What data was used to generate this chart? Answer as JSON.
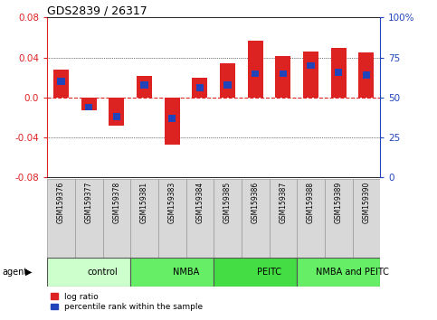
{
  "title": "GDS2839 / 26317",
  "samples": [
    "GSM159376",
    "GSM159377",
    "GSM159378",
    "GSM159381",
    "GSM159383",
    "GSM159384",
    "GSM159385",
    "GSM159386",
    "GSM159387",
    "GSM159388",
    "GSM159389",
    "GSM159390"
  ],
  "log_ratio": [
    0.028,
    -0.013,
    -0.028,
    0.022,
    -0.047,
    0.02,
    0.034,
    0.057,
    0.042,
    0.046,
    0.05,
    0.045
  ],
  "percentile": [
    0.6,
    0.44,
    0.38,
    0.58,
    0.37,
    0.56,
    0.58,
    0.65,
    0.65,
    0.7,
    0.66,
    0.64
  ],
  "groups": [
    {
      "label": "control",
      "start": 0,
      "end": 3,
      "color": "#ccffcc"
    },
    {
      "label": "NMBA",
      "start": 3,
      "end": 6,
      "color": "#66ee66"
    },
    {
      "label": "PEITC",
      "start": 6,
      "end": 9,
      "color": "#44dd44"
    },
    {
      "label": "NMBA and PEITC",
      "start": 9,
      "end": 12,
      "color": "#66ee66"
    }
  ],
  "ylim": [
    -0.08,
    0.08
  ],
  "yticks_left": [
    -0.08,
    -0.04,
    0.0,
    0.04,
    0.08
  ],
  "yticks_right_pct": [
    0,
    25,
    50,
    75,
    100
  ],
  "bar_color_red": "#dd2222",
  "bar_color_blue": "#2244bb",
  "zero_line_color": "#dd2222",
  "tick_color_left": "#dd2222",
  "tick_color_right": "#2244bb",
  "bar_width": 0.55,
  "pct_bar_width": 0.28,
  "pct_bar_height": 0.007,
  "legend_label_red": "log ratio",
  "legend_label_blue": "percentile rank within the sample",
  "agent_label": "agent",
  "sample_box_color": "#d8d8d8",
  "sample_box_edge": "#999999"
}
